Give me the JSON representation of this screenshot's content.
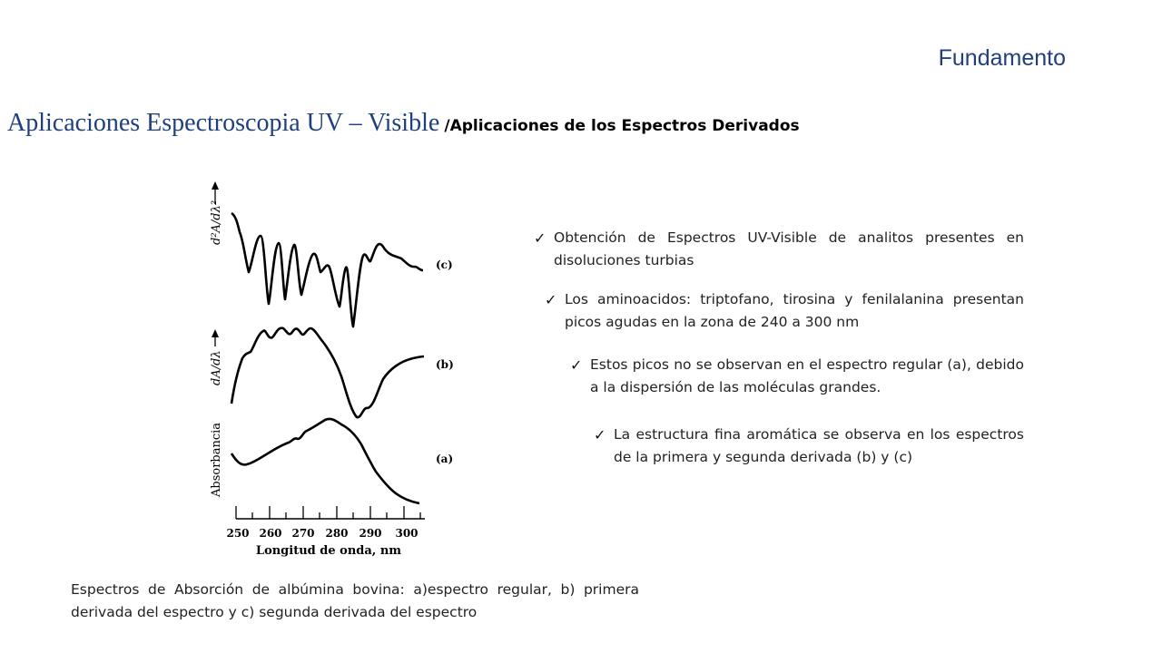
{
  "header": {
    "section": "Fundamento"
  },
  "title": {
    "main": "Aplicaciones Espectroscopia UV – Visible",
    "sub": "/Aplicaciones de los Espectros Derivados"
  },
  "figure": {
    "y_labels": {
      "a": "Absorbancia",
      "b": "dA/dλ",
      "c": "d²A/dλ²"
    },
    "curve_labels": [
      "(c)",
      "(b)",
      "(a)"
    ],
    "x_ticks": [
      "250",
      "260",
      "270",
      "280",
      "290",
      "300"
    ],
    "xlabel": "Longitud de onda, nm"
  },
  "bullets": [
    {
      "text": "Obtención de Espectros UV-Visible de analitos presentes en disoluciones turbias"
    },
    {
      "text": "Los aminoacidos: triptofano, tirosina y fenilalanina presentan picos agudas en la zona de 240 a 300 nm"
    },
    {
      "text": "Estos picos no se observan en el espectro regular (a), debido a la dispersión de las moléculas grandes."
    },
    {
      "text": "La estructura fina aromática se observa en los espectros de la primera y segunda derivada (b) y (c)"
    }
  ],
  "caption": "Espectros de Absorción de albúmina bovina: a)espectro regular, b) primera derivada del espectro y c) segunda derivada del espectro",
  "colors": {
    "accent": "#1f3f7f"
  }
}
